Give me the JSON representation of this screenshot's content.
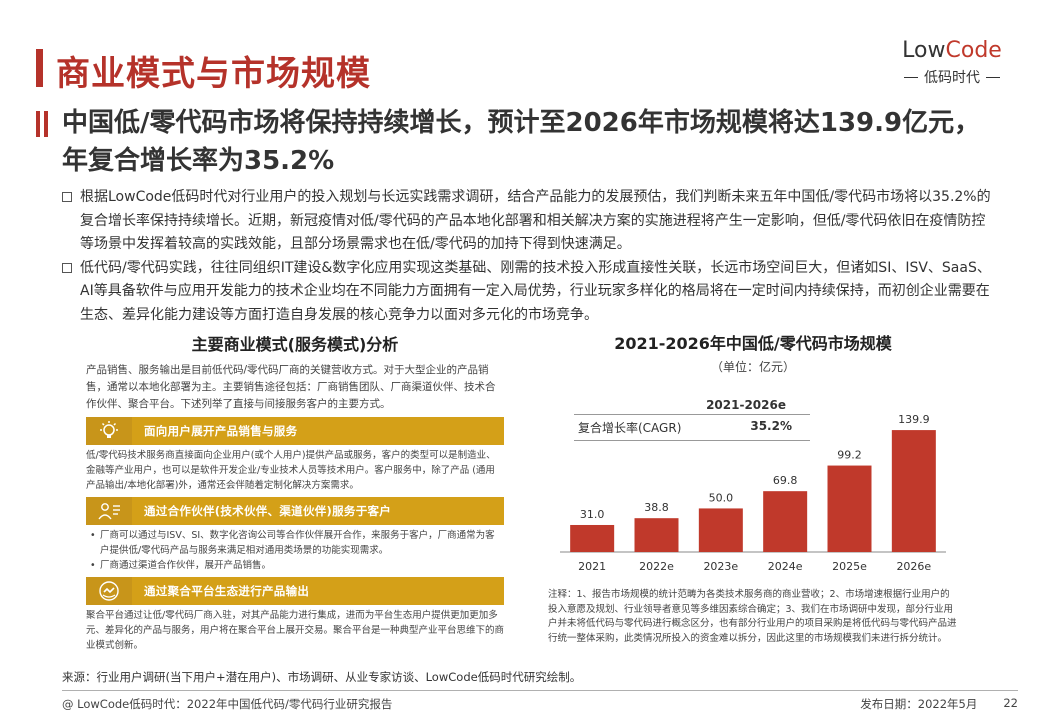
{
  "title": "商业模式与市场规模",
  "logo": {
    "main_prefix": "Low",
    "main_accent": "Code",
    "sub": "低码时代"
  },
  "subtitle": "中国低/零代码市场将保持持续增长，预计至2026年市场规模将达139.9亿元，年复合增长率为35.2%",
  "bullets": [
    "根据LowCode低码时代对行业用户的投入规划与长远实践需求调研，结合产品能力的发展预估，我们判断未来五年中国低/零代码市场将以35.2%的复合增长率保持持续增长。近期，新冠疫情对低/零代码的产品本地化部署和相关解决方案的实施进程将产生一定影响，但低/零代码依旧在疫情防控等场景中发挥着较高的实践效能，且部分场景需求也在低/零代码的加持下得到快速满足。",
    "低代码/零代码实践，往往同组织IT建设&数字化应用实现这类基础、刚需的技术投入形成直接性关联，长远市场空间巨大，但诸如SI、ISV、SaaS、AI等具备软件与应用开发能力的技术企业均在不同能力方面拥有一定入局优势，行业玩家多样化的格局将在一定时间内持续保持，而初创企业需要在生态、差异化能力建设等方面打造自身发展的核心竞争力以面对多元化的市场竞争。"
  ],
  "left": {
    "heading": "主要商业模式(服务模式)分析",
    "intro": "产品销售、服务输出是目前低代码/零代码厂商的关键营收方式。对于大型企业的产品销售，通常以本地化部署为主。主要销售途径包括：厂商销售团队、厂商渠道伙伴、技术合作伙伴、聚合平台。下述列举了直接与间接服务客户的主要方式。",
    "sections": [
      {
        "label": "面向用户展开产品销售与服务",
        "icon": "lightbulb-icon",
        "body": "低/零代码技术服务商直接面向企业用户(或个人用户)提供产品或服务，客户的类型可以是制造业、金融等产业用户，也可以是软件开发企业/专业技术人员等技术用户。客户服务中，除了产品 (通用产品输出/本地化部署)外，通常还会伴随着定制化解决方案需求。"
      },
      {
        "label": "通过合作伙伴(技术伙伴、渠道伙伴)服务于客户",
        "icon": "partner-icon",
        "items": [
          "厂商可以通过与ISV、SI、数字化咨询公司等合作伙伴展开合作，来服务于客户，厂商通常为客户提供低/零代码产品与服务来满足相对通用类场景的功能实现需求。",
          "厂商通过渠道合作伙伴，展开产品销售。"
        ]
      },
      {
        "label": "通过聚合平台生态进行产品输出",
        "icon": "platform-icon",
        "body": "聚合平台通过让低/零代码厂商入驻，对其产品能力进行集成，进而为平台生态用户提供更加更加多元、差异化的产品与服务，用户将在聚合平台上展开交易。聚合平台是一种典型产业平台思维下的商业模式创新。"
      }
    ]
  },
  "right": {
    "title": "2021-2026年中国低/零代码市场规模",
    "unit": "（单位：亿元）",
    "cagr_header": "2021-2026e",
    "cagr_label": "复合增长率(CAGR)",
    "cagr_value": "35.2%"
  },
  "chart_data": {
    "type": "bar",
    "categories": [
      "2021",
      "2022e",
      "2023e",
      "2024e",
      "2025e",
      "2026e"
    ],
    "values": [
      31.0,
      38.8,
      50.0,
      69.8,
      99.2,
      139.9
    ],
    "value_labels": [
      "31.0",
      "38.8",
      "50.0",
      "69.8",
      "99.2",
      "139.9"
    ],
    "ylim": [
      0,
      140
    ],
    "bar_color": "#c0392b",
    "grid": false
  },
  "note": "注释：1、报告市场规模的统计范畴为各类技术服务商的商业营收；2、市场增速根据行业用户的投入意愿及规划、行业领导者意见等多维因素综合确定；3、我们在市场调研中发现，部分行业用户并未将低代码与零代码进行概念区分，也有部分行业用户的项目采购是将低代码与零代码产品进行统一整体采购，此类情况所投入的资金难以拆分，因此这里的市场规模我们未进行拆分统计。",
  "source": "来源：行业用户调研(当下用户+潜在用户)、市场调研、从业专家访谈、LowCode低码时代研究绘制。",
  "footer": {
    "left": "@ LowCode低码时代：2022年中国低代码/零代码行业研究报告",
    "date": "发布日期：2022年5月",
    "page": "22"
  },
  "colors": {
    "brand_red": "#b5322a",
    "bar": "#c0392b",
    "gold": "#d4a018"
  }
}
